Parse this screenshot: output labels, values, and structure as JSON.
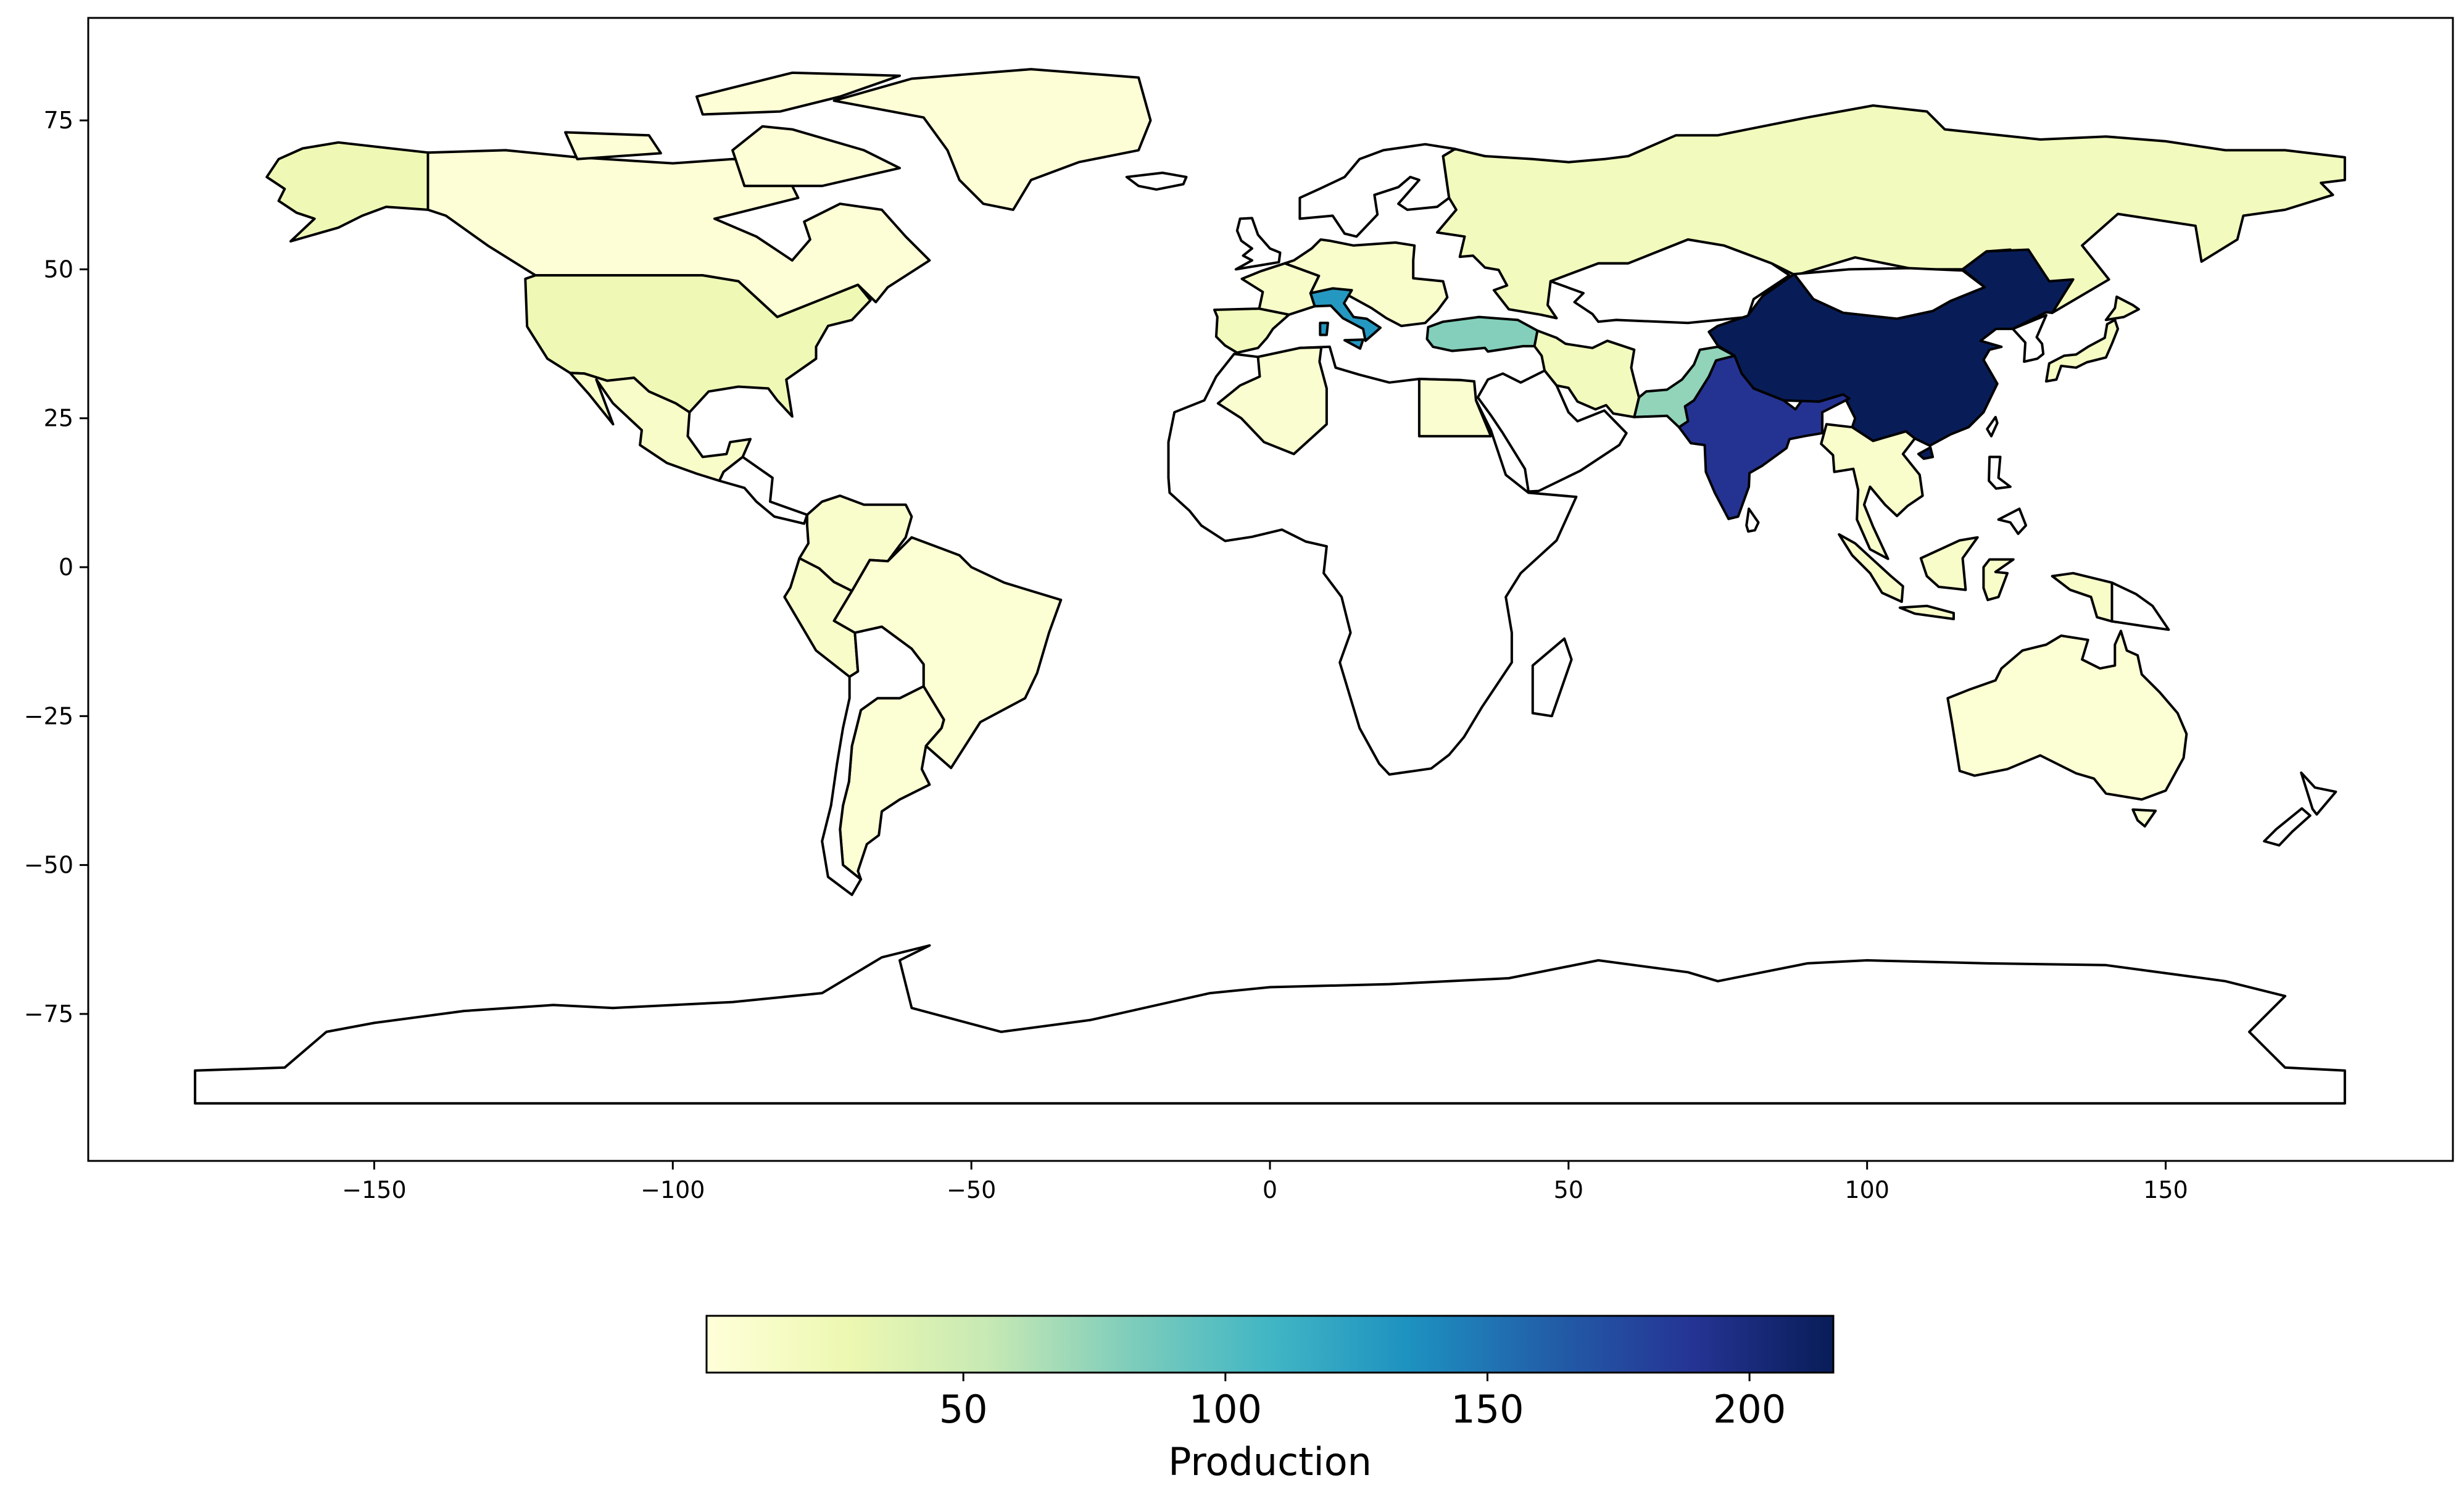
{
  "chart_data": {
    "type": "choropleth",
    "projection": "plate-carree",
    "colormap": "YlGnBu",
    "missing_color": "#ffffff",
    "xlim": [
      -198,
      198
    ],
    "ylim": [
      -99,
      93
    ],
    "x_ticks": [
      -150,
      -100,
      -50,
      0,
      50,
      100,
      150
    ],
    "x_tick_labels": [
      "−150",
      "−100",
      "−50",
      "0",
      "50",
      "100",
      "150"
    ],
    "y_ticks": [
      75,
      50,
      25,
      0,
      -25,
      -50,
      -75
    ],
    "y_tick_labels": [
      "75",
      "50",
      "25",
      "0",
      "−25",
      "−50",
      "−75"
    ],
    "colorbar": {
      "label": "Production",
      "vmin": 1,
      "vmax": 216,
      "ticks": [
        50,
        100,
        150,
        200
      ],
      "tick_labels": [
        "50",
        "100",
        "150",
        "200"
      ],
      "orientation": "horizontal",
      "placement": "bottom"
    },
    "regions": [
      {
        "name": "China",
        "value": 216
      },
      {
        "name": "India",
        "value": 190
      },
      {
        "name": "Italy",
        "value": 130
      },
      {
        "name": "Turkey",
        "value": 80
      },
      {
        "name": "Pakistan",
        "value": 75
      },
      {
        "name": "United States",
        "value": 25
      },
      {
        "name": "Canada",
        "value": 3
      },
      {
        "name": "Alaska (USA)",
        "value": 25
      },
      {
        "name": "Mexico",
        "value": 12
      },
      {
        "name": "Brazil",
        "value": 5
      },
      {
        "name": "Peru",
        "value": 12
      },
      {
        "name": "Colombia / Venezuela",
        "value": 10
      },
      {
        "name": "Argentina",
        "value": 5
      },
      {
        "name": "Russia",
        "value": 20
      },
      {
        "name": "Iran",
        "value": 20
      },
      {
        "name": "Spain",
        "value": 20
      },
      {
        "name": "France",
        "value": 12
      },
      {
        "name": "Central Europe",
        "value": 10
      },
      {
        "name": "Algeria",
        "value": 8
      },
      {
        "name": "Egypt",
        "value": 8
      },
      {
        "name": "Japan",
        "value": 15
      },
      {
        "name": "Southeast Asia",
        "value": 10
      },
      {
        "name": "Indonesia",
        "value": 12
      },
      {
        "name": "Australia",
        "value": 5
      },
      {
        "name": "Greenland",
        "value": 3
      }
    ],
    "unfilled_regions": [
      "Africa",
      "Greenland interior",
      "Antarctica",
      "Scandinavia",
      "Mongolia",
      "Kazakhstan",
      "Arabian Peninsula"
    ]
  }
}
